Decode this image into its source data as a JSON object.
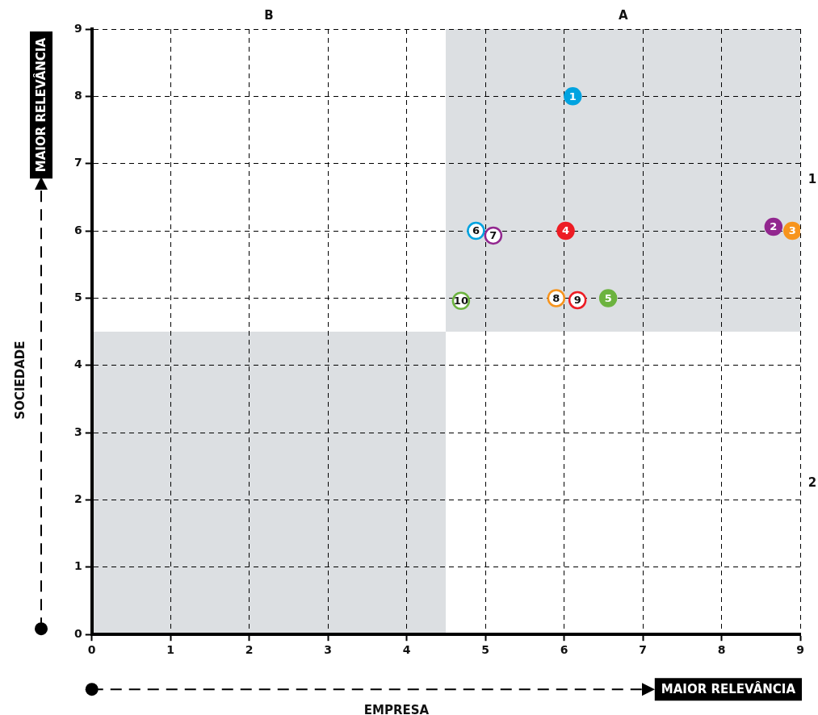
{
  "chart_data": {
    "type": "scatter",
    "xlabel": "EMPRESA",
    "ylabel": "SOCIEDADE",
    "annotations": [
      "MAIOR RELEVÂNCIA",
      "MAIOR RELEVÂNCIA",
      "B",
      "A",
      "1",
      "2",
      {
        "text": "1",
        "x": 6.11,
        "y": 8.0
      },
      {
        "text": "2",
        "x": 8.66,
        "y": 6.06
      },
      {
        "text": "3",
        "x": 8.9,
        "y": 6.0
      },
      {
        "text": "4",
        "x": 6.02,
        "y": 6.0
      },
      {
        "text": "5",
        "x": 6.56,
        "y": 5.0
      },
      {
        "text": "6",
        "x": 4.88,
        "y": 6.0
      },
      {
        "text": "7",
        "x": 5.1,
        "y": 5.93
      },
      {
        "text": "8",
        "x": 5.9,
        "y": 5.0
      },
      {
        "text": "9",
        "x": 6.17,
        "y": 4.97
      },
      {
        "text": "10",
        "x": 4.69,
        "y": 4.96
      }
    ],
    "xlim": [
      0,
      9
    ],
    "ylim": [
      0,
      9
    ],
    "xticks": [
      0,
      1,
      2,
      3,
      4,
      5,
      6,
      7,
      8,
      9
    ],
    "yticks": [
      0,
      1,
      2,
      3,
      4,
      5,
      6,
      7,
      8,
      9
    ],
    "grid": true,
    "legend": false,
    "marker": "circle",
    "series": [
      {
        "colors": [
          "#00a3e0",
          "#92278f",
          "#f7941d",
          "#ed1c24",
          "#6cb33f"
        ],
        "x": [
          6.11,
          8.66,
          8.9,
          6.02,
          6.56
        ],
        "values": [
          8.0,
          6.06,
          6.0,
          6.0,
          5.0
        ]
      },
      {
        "color": "#ffffff",
        "colors": [
          "#00a3e0",
          "#92278f",
          "#f7941d",
          "#ed1c24",
          "#6cb33f"
        ],
        "x": [
          4.88,
          5.1,
          5.9,
          6.17,
          4.69
        ],
        "values": [
          6.0,
          5.93,
          5.0,
          4.97,
          4.96
        ]
      }
    ]
  }
}
